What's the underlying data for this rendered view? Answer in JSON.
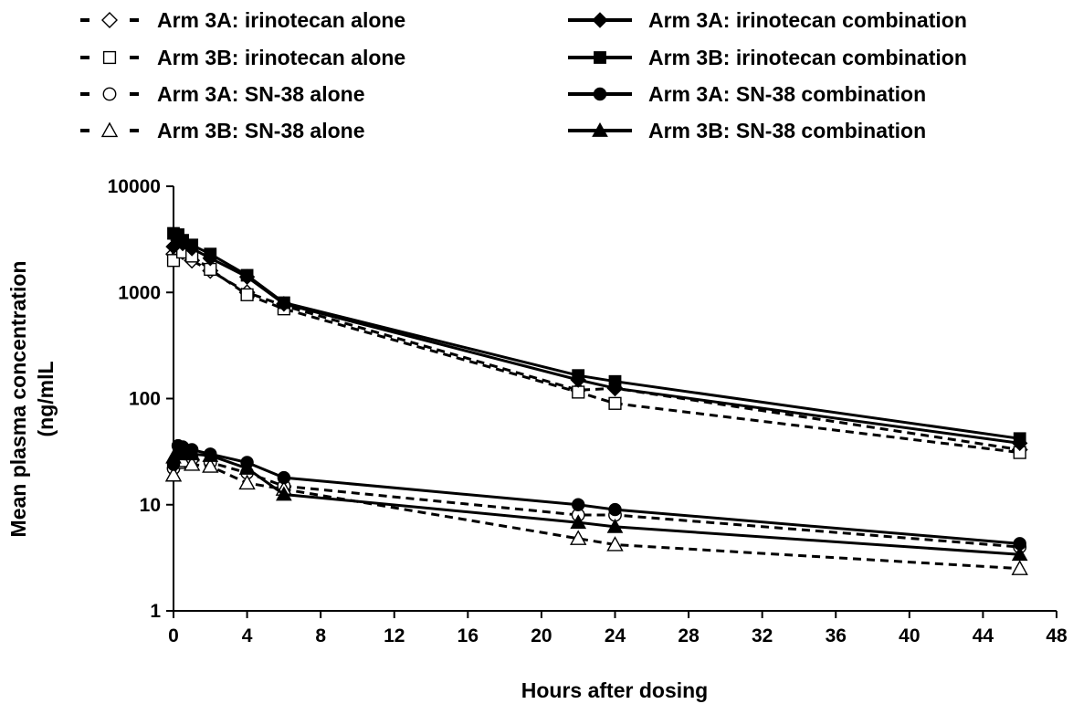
{
  "chart_data": {
    "type": "line",
    "title": "",
    "xlabel": "Hours after dosing",
    "ylabel_lines": [
      "Mean plasma concentration",
      "(ng/mlL"
    ],
    "ylabel": "Mean plasma concentration (ng/mlL",
    "xlim": [
      0,
      48
    ],
    "ylim": [
      1,
      10000
    ],
    "yscale": "log",
    "grid": false,
    "legend_position": "top",
    "x_ticks": [
      0,
      4,
      8,
      12,
      16,
      20,
      24,
      28,
      32,
      36,
      40,
      44,
      48
    ],
    "x_tick_labels": [
      "0",
      "4",
      "8",
      "12",
      "16",
      "20",
      "24",
      "28",
      "32",
      "36",
      "40",
      "44",
      "48"
    ],
    "y_ticks": [
      1,
      10,
      100,
      1000,
      10000
    ],
    "y_tick_labels": [
      "1",
      "10",
      "100",
      "1000",
      "10000"
    ],
    "series": [
      {
        "name": "Arm 3A: irinotecan alone",
        "line": "dashed",
        "marker": "diamond",
        "filled": false,
        "x": [
          0,
          0.25,
          0.5,
          1,
          2,
          4,
          6,
          22,
          24,
          46
        ],
        "y": [
          2300,
          2600,
          2400,
          2000,
          1600,
          1000,
          750,
          120,
          125,
          33
        ]
      },
      {
        "name": "Arm 3B: irinotecan alone",
        "line": "dashed",
        "marker": "square",
        "filled": false,
        "x": [
          0,
          0.25,
          0.5,
          1,
          2,
          4,
          6,
          22,
          24,
          46
        ],
        "y": [
          2000,
          2600,
          2400,
          2200,
          1650,
          950,
          700,
          115,
          90,
          31
        ]
      },
      {
        "name": "Arm 3A: SN-38 alone",
        "line": "dashed",
        "marker": "circle",
        "filled": false,
        "x": [
          0,
          0.25,
          0.5,
          1,
          2,
          4,
          6,
          22,
          24,
          46
        ],
        "y": [
          22,
          29,
          29,
          27,
          25,
          20,
          15,
          8,
          8,
          4
        ]
      },
      {
        "name": "Arm 3B: SN-38 alone",
        "line": "dashed",
        "marker": "triangle",
        "filled": false,
        "x": [
          0,
          0.25,
          0.5,
          1,
          2,
          4,
          6,
          22,
          24,
          46
        ],
        "y": [
          19,
          25,
          26,
          24,
          23,
          16,
          14,
          4.8,
          4.2,
          2.5
        ]
      },
      {
        "name": "Arm 3A: irinotecan combination",
        "line": "solid",
        "marker": "diamond",
        "filled": true,
        "x": [
          0,
          0.25,
          0.5,
          1,
          2,
          4,
          6,
          22,
          24,
          46
        ],
        "y": [
          2700,
          3100,
          2900,
          2600,
          2100,
          1400,
          780,
          150,
          125,
          38
        ]
      },
      {
        "name": "Arm 3B: irinotecan combination",
        "line": "solid",
        "marker": "square",
        "filled": true,
        "x": [
          0,
          0.25,
          0.5,
          1,
          2,
          4,
          6,
          22,
          24,
          46
        ],
        "y": [
          3600,
          3500,
          3100,
          2800,
          2300,
          1450,
          800,
          165,
          145,
          42
        ]
      },
      {
        "name": "Arm 3A:  SN-38 combination",
        "line": "solid",
        "marker": "circle",
        "filled": true,
        "x": [
          0,
          0.25,
          0.5,
          1,
          2,
          4,
          6,
          22,
          24,
          46
        ],
        "y": [
          24,
          36,
          35,
          33,
          30,
          25,
          18,
          10,
          9,
          4.3
        ]
      },
      {
        "name": "Arm 3B: SN-38 combination",
        "line": "solid",
        "marker": "triangle",
        "filled": true,
        "x": [
          0,
          0.25,
          0.5,
          1,
          2,
          4,
          6,
          22,
          24,
          46
        ],
        "y": [
          28,
          32,
          30,
          30,
          29,
          22,
          12.5,
          6.8,
          6.2,
          3.4
        ]
      }
    ]
  }
}
